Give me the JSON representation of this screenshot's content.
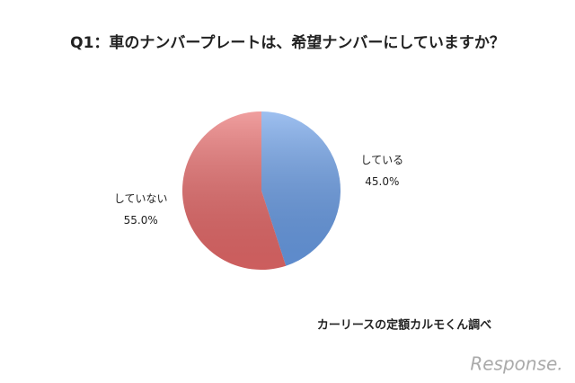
{
  "chart_data": {
    "type": "pie",
    "title": "Q1：車のナンバープレートは、希望ナンバーにしていますか？",
    "categories": [
      "している",
      "していない"
    ],
    "values": [
      45,
      55
    ],
    "value_labels": [
      "45.0%",
      "55.0%"
    ],
    "colors": [
      "#6a9ee8",
      "#e86a6a"
    ],
    "source": "カーリースの定額カルモくん調べ",
    "watermark": "Response."
  }
}
